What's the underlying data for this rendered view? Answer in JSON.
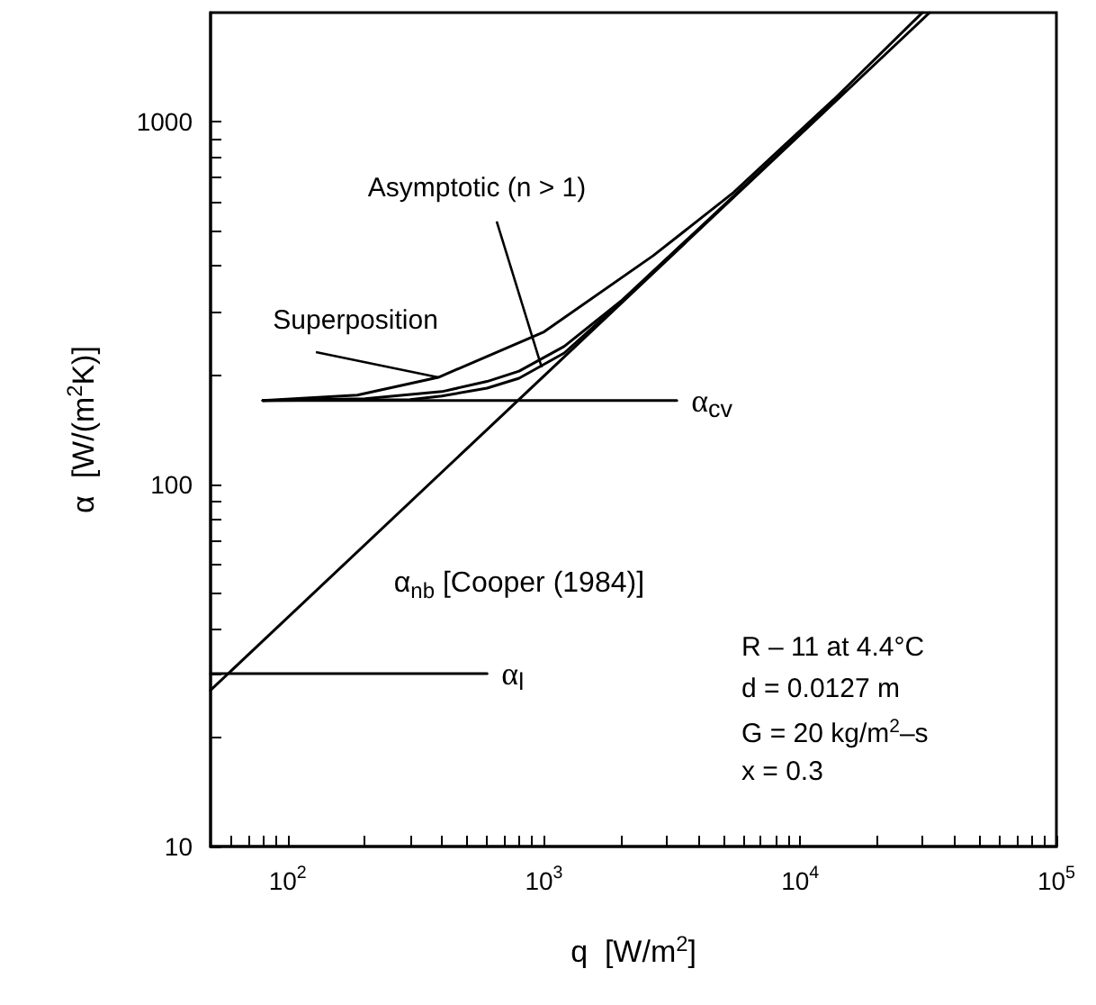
{
  "chart_data": {
    "type": "line",
    "xlabel": "q  [W/m$^{2}$]",
    "ylabel": "α  [W/(m$^{2}$K)]",
    "log": "xy",
    "marker": "none",
    "legend": false,
    "xlim": [
      50,
      100000
    ],
    "ylim": [
      10,
      2000
    ],
    "xticks": [
      {
        "value": 60,
        "label": null
      },
      {
        "value": 70,
        "label": null
      },
      {
        "value": 80,
        "label": null
      },
      {
        "value": 90,
        "label": null
      },
      {
        "value": 100,
        "label": "10$^{2}$"
      },
      {
        "value": 200,
        "label": null
      },
      {
        "value": 300,
        "label": null
      },
      {
        "value": 400,
        "label": null
      },
      {
        "value": 500,
        "label": null
      },
      {
        "value": 600,
        "label": null
      },
      {
        "value": 700,
        "label": null
      },
      {
        "value": 800,
        "label": null
      },
      {
        "value": 900,
        "label": null
      },
      {
        "value": 1000,
        "label": "10$^{3}$"
      },
      {
        "value": 2000,
        "label": null
      },
      {
        "value": 3000,
        "label": null
      },
      {
        "value": 4000,
        "label": null
      },
      {
        "value": 5000,
        "label": null
      },
      {
        "value": 6000,
        "label": null
      },
      {
        "value": 7000,
        "label": null
      },
      {
        "value": 8000,
        "label": null
      },
      {
        "value": 9000,
        "label": null
      },
      {
        "value": 10000,
        "label": "10$^{4}$"
      },
      {
        "value": 20000,
        "label": null
      },
      {
        "value": 30000,
        "label": null
      },
      {
        "value": 40000,
        "label": null
      },
      {
        "value": 50000,
        "label": null
      },
      {
        "value": 60000,
        "label": null
      },
      {
        "value": 70000,
        "label": null
      },
      {
        "value": 80000,
        "label": null
      },
      {
        "value": 90000,
        "label": null
      },
      {
        "value": 100000,
        "label": "10$^{5}$"
      }
    ],
    "yticks": [
      10,
      {
        "value": 20,
        "label": null
      },
      {
        "value": 30,
        "label": null
      },
      {
        "value": 40,
        "label": null
      },
      {
        "value": 50,
        "label": null
      },
      {
        "value": 60,
        "label": null
      },
      {
        "value": 70,
        "label": null
      },
      {
        "value": 80,
        "label": null
      },
      {
        "value": 90,
        "label": null
      },
      100,
      {
        "value": 200,
        "label": null
      },
      {
        "value": 300,
        "label": null
      },
      {
        "value": 400,
        "label": null
      },
      {
        "value": 500,
        "label": null
      },
      {
        "value": 600,
        "label": null
      },
      {
        "value": 700,
        "label": null
      },
      {
        "value": 800,
        "label": null
      },
      {
        "value": 900,
        "label": null
      },
      1000
    ],
    "series": [
      {
        "name": "α$_{nb}$ [Cooper (1984)]",
        "color": "#000000",
        "x": [
          50,
          32000
        ],
        "values": [
          27,
          2000
        ]
      },
      {
        "name": "α$_{cv}$",
        "color": "#000000",
        "x": [
          80,
          3300
        ],
        "values": [
          170,
          170
        ]
      },
      {
        "name": "α$_{l}$",
        "color": "#000000",
        "x": [
          50,
          600
        ],
        "values": [
          30,
          30
        ]
      },
      {
        "color": "#000000",
        "x": [
          80,
          187,
          387,
          1000,
          2670,
          5500,
          13500,
          30000
        ],
        "values": [
          170,
          176,
          197,
          263,
          427,
          638,
          1150,
          2000
        ]
      },
      {
        "color": "#000000",
        "x": [
          80,
          200,
          400,
          600,
          800,
          1200,
          2000,
          4000,
          8000,
          15000
        ],
        "values": [
          170,
          172,
          180,
          192,
          205,
          240,
          320,
          505,
          799,
          1212
        ]
      },
      {
        "color": "#000000",
        "x": [
          80,
          300,
          400,
          600,
          800,
          1200,
          2000,
          4000
        ],
        "values": [
          170,
          171,
          175,
          184,
          196,
          230,
          318,
          503
        ]
      }
    ],
    "annotations": [
      {
        "text": "Asymptotic (n > 1)",
        "x": 980,
        "y": 210
      },
      {
        "text": "Superposition",
        "x": 387,
        "y": 197
      },
      "R – 11 at 4.4°C",
      "d = 0.0127 m",
      "G = 20 kg/m$^{2}$–s",
      "x = 0.3"
    ]
  }
}
